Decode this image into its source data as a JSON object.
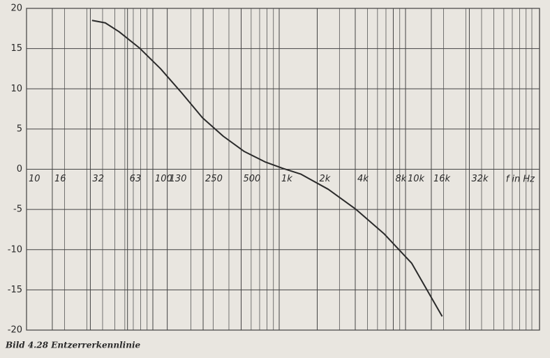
{
  "chart_data": {
    "type": "line",
    "caption": "Bild 4.28 Entzerrerkennlinie",
    "x_label": "f in Hz",
    "log_x": true,
    "grid": true,
    "xlim": [
      10,
      115000
    ],
    "ylim": [
      -20,
      20
    ],
    "yticks": [
      -20,
      -15,
      -10,
      -5,
      0,
      5,
      10,
      15,
      20
    ],
    "xticks": [
      10,
      16,
      32,
      63,
      100,
      130,
      250,
      500,
      {
        "value": 1000,
        "label": "1k"
      },
      {
        "value": 2000,
        "label": "2k"
      },
      {
        "value": 4000,
        "label": "4k"
      },
      {
        "value": 8000,
        "label": "8k"
      },
      {
        "value": 10000,
        "label": "10k"
      },
      {
        "value": 16000,
        "label": "16k"
      },
      {
        "value": 32000,
        "label": "32k"
      }
    ],
    "xminor": [
      20,
      30,
      40,
      50,
      60,
      70,
      80,
      90,
      200,
      300,
      400,
      600,
      700,
      800,
      900,
      3000,
      5000,
      6000,
      7000,
      9000,
      20000,
      30000,
      40000,
      50000,
      60000,
      70000,
      80000,
      90000,
      100000
    ],
    "series": [
      {
        "color": "#2a2a2a",
        "x": [
          33,
          42,
          54,
          78,
          115,
          169,
          247,
          361,
          530,
          776,
          1070,
          1480,
          2450,
          4060,
          6740,
          11200,
          19500
        ],
        "values": [
          18.5,
          18.2,
          17.1,
          15.1,
          12.5,
          9.5,
          6.4,
          4.1,
          2.2,
          0.9,
          0.1,
          -0.6,
          -2.5,
          -5.0,
          -8.0,
          -11.7,
          -18.3
        ]
      }
    ]
  }
}
